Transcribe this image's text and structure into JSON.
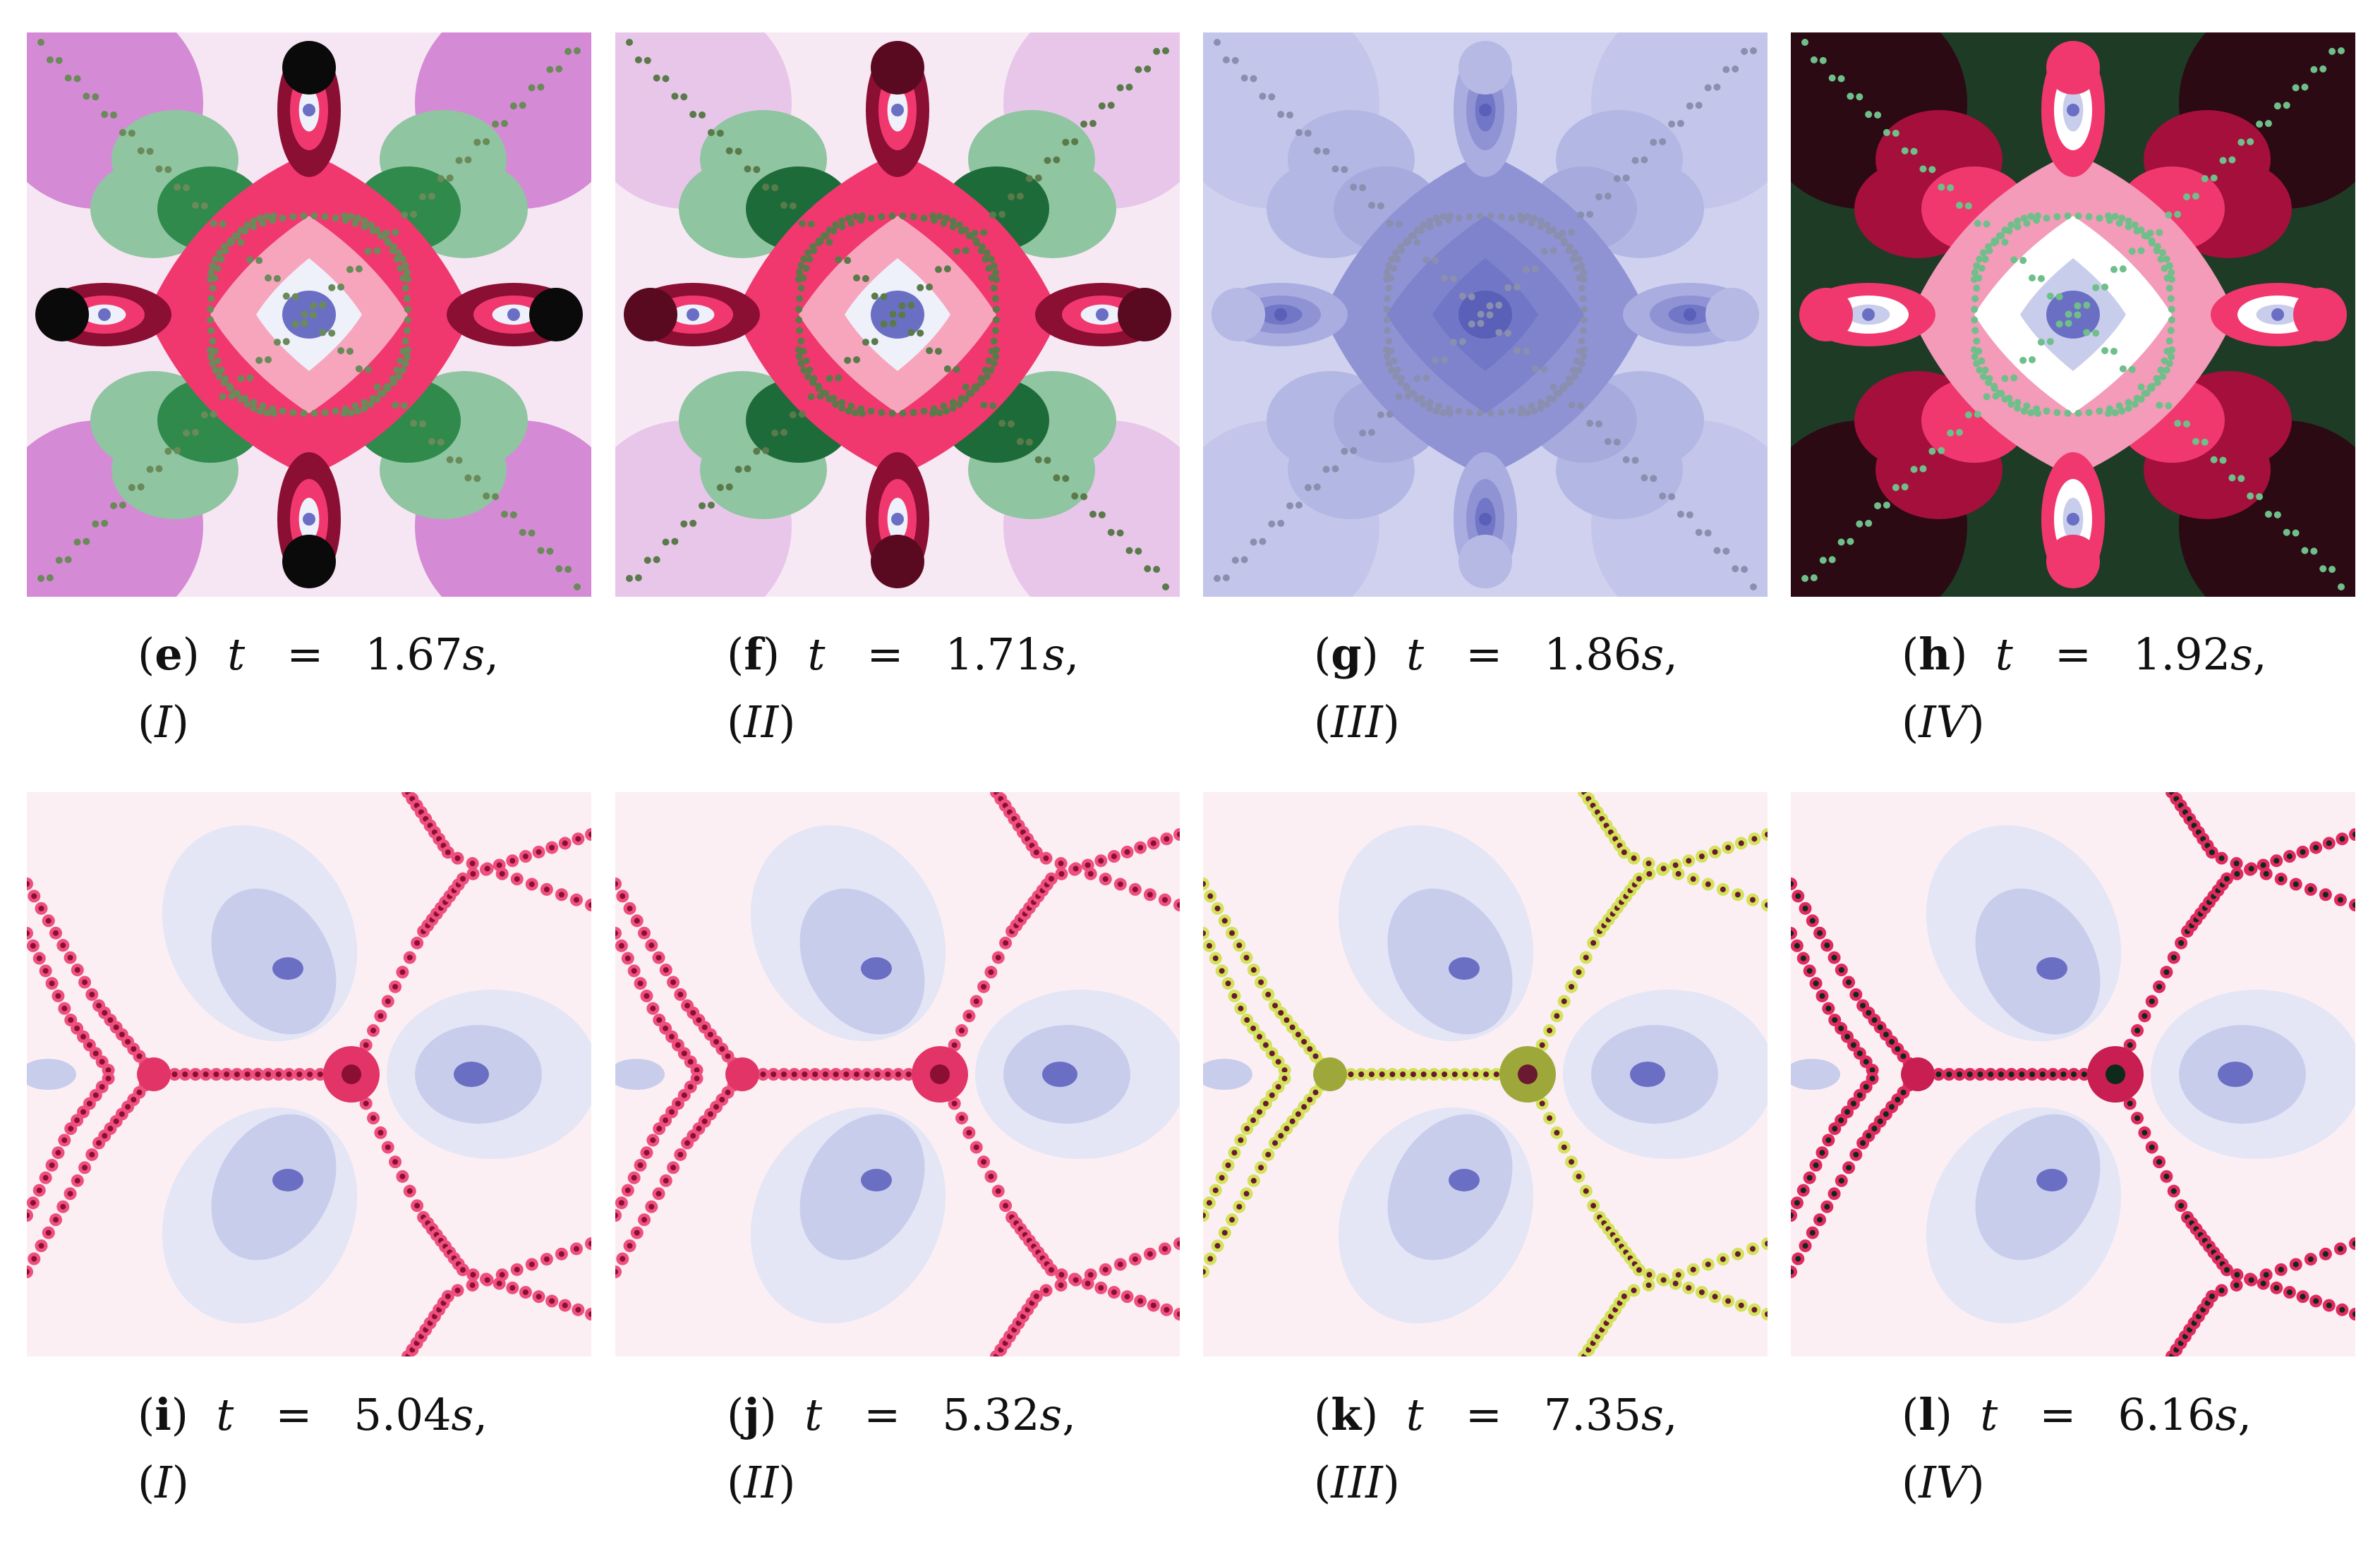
{
  "figure": {
    "panels": [
      {
        "id": "e",
        "letter": "e",
        "time": "1.67",
        "unit": "s",
        "case": "I",
        "variant": "basin-green-pink"
      },
      {
        "id": "f",
        "letter": "f",
        "time": "1.71",
        "unit": "s",
        "case": "II",
        "variant": "basin-green-pink-2"
      },
      {
        "id": "g",
        "letter": "g",
        "time": "1.86",
        "unit": "s",
        "case": "III",
        "variant": "basin-lavender"
      },
      {
        "id": "h",
        "letter": "h",
        "time": "1.92",
        "unit": "s",
        "case": "IV",
        "variant": "basin-dark-red"
      },
      {
        "id": "i",
        "letter": "i",
        "time": "5.04",
        "unit": "s",
        "case": "I",
        "variant": "tri-red"
      },
      {
        "id": "j",
        "letter": "j",
        "time": "5.32",
        "unit": "s",
        "case": "II",
        "variant": "tri-red"
      },
      {
        "id": "k",
        "letter": "k",
        "time": "7.35",
        "unit": "s",
        "case": "III",
        "variant": "tri-yellow"
      },
      {
        "id": "l",
        "letter": "l",
        "time": "6.16",
        "unit": "s",
        "case": "IV",
        "variant": "tri-dark"
      }
    ],
    "symbols": {
      "t": "t",
      "eq": "=",
      "comma": ","
    }
  },
  "colors": {
    "pink": "#f0386f",
    "dark_red": "#5a0a20",
    "green_dark": "#1e6b3a",
    "green_mid": "#2f8a4c",
    "green_light": "#8fc5a1",
    "lavender": "#b9bde6",
    "lavender_dark": "#6b6fc4",
    "blush": "#fbd9e3",
    "magenta": "#d63a7a",
    "yellow": "#c4d64b"
  }
}
